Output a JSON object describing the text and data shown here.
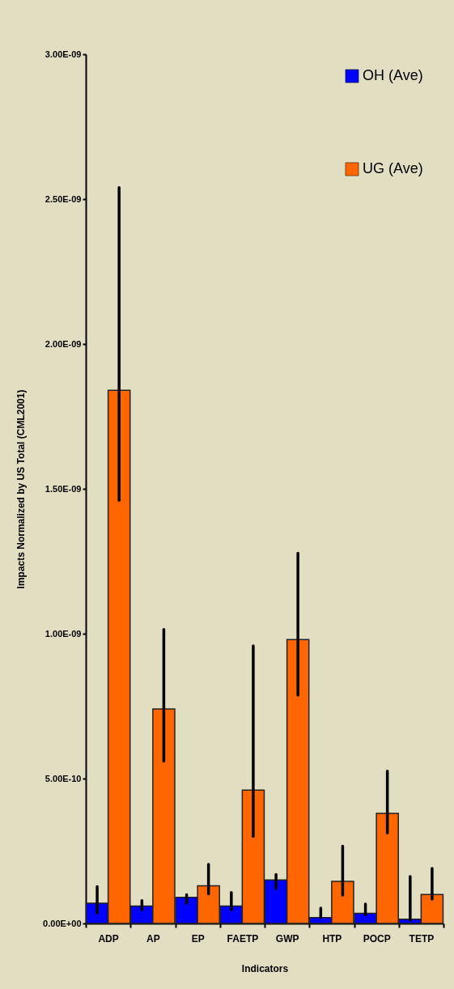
{
  "chart_data": {
    "type": "bar",
    "ylabel": "Impacts Normalized by US Total (CML2001)",
    "xlabel": "Indicators",
    "categories": [
      "ADP",
      "AP",
      "EP",
      "FAETP",
      "GWP",
      "HTP",
      "POCP",
      "TETP"
    ],
    "series": [
      {
        "name": "OH (Ave)",
        "color": "#0000ff",
        "values": [
          7e-11,
          6e-11,
          9e-11,
          6e-11,
          1.5e-10,
          2e-11,
          3.5e-11,
          1.5e-11
        ],
        "errors": [
          [
            3.6e-11,
            1.27e-10
          ],
          [
            4.7e-11,
            7.9e-11
          ],
          [
            7e-11,
            9.9e-11
          ],
          [
            4.7e-11,
            1.07e-10
          ],
          [
            1.2e-10,
            1.69e-10
          ],
          [
            2e-11,
            5.3e-11
          ],
          [
            3e-11,
            6.7e-11
          ],
          [
            1.1e-11,
            1.62e-10
          ]
        ]
      },
      {
        "name": "UG (Ave)",
        "color": "#ff6600",
        "values": [
          1.84e-09,
          7.4e-10,
          1.3e-10,
          4.6e-10,
          9.8e-10,
          1.45e-10,
          3.8e-10,
          1e-10
        ],
        "errors": [
          [
            1.46e-09,
            2.54e-09
          ],
          [
            5.6e-10,
            1.015e-09
          ],
          [
            1.02e-10,
            2.04e-10
          ],
          [
            3e-10,
            9.58e-10
          ],
          [
            7.88e-10,
            1.278e-09
          ],
          [
            9.8e-11,
            2.67e-10
          ],
          [
            3.12e-10,
            5.26e-10
          ],
          [
            8.4e-11,
            1.9e-10
          ]
        ]
      }
    ],
    "ylim": [
      0,
      3e-09
    ],
    "yticks": [
      {
        "value": 0,
        "label": "0.00E+00"
      },
      {
        "value": 5e-10,
        "label": "5.00E-10"
      },
      {
        "value": 1e-09,
        "label": "1.00E-09"
      },
      {
        "value": 1.5e-09,
        "label": "1.50E-09"
      },
      {
        "value": 2e-09,
        "label": "2.00E-09"
      },
      {
        "value": 2.5e-09,
        "label": "2.50E-09"
      },
      {
        "value": 3e-09,
        "label": "3.00E-09"
      }
    ],
    "grid": false,
    "legend": "top right"
  }
}
